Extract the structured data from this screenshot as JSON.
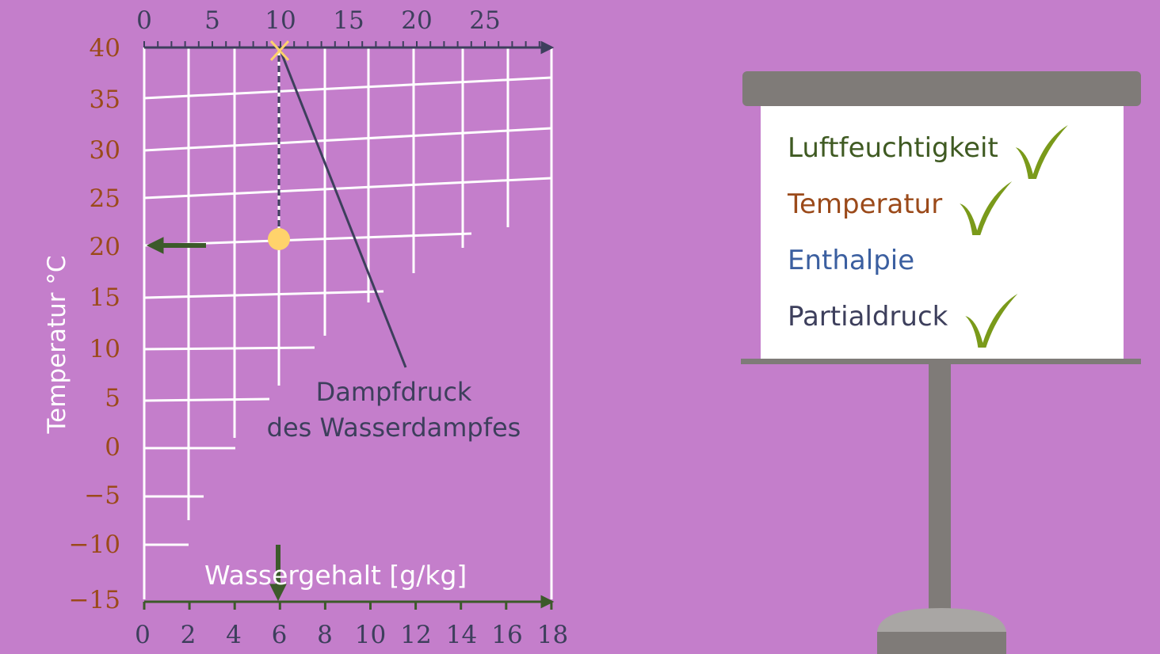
{
  "diagram": {
    "top_axis": {
      "tick_labels": [
        "0",
        "5",
        "10",
        "15",
        "20",
        "25"
      ]
    },
    "left_axis": {
      "title": "Temperatur °C",
      "tick_labels": [
        "40",
        "35",
        "30",
        "25",
        "20",
        "15",
        "10",
        "5",
        "0",
        "−5",
        "−10",
        "−15"
      ]
    },
    "bottom_axis": {
      "title": "Wassergehalt [g/kg]",
      "tick_labels": [
        "0",
        "2",
        "4",
        "6",
        "8",
        "10",
        "12",
        "14",
        "16",
        "18"
      ]
    },
    "annotation": {
      "lines": [
        "Dampfdruck",
        "des Wasserdampfes"
      ]
    }
  },
  "board": {
    "items": [
      {
        "label": "Luftfeuchtigkeit",
        "checked": true
      },
      {
        "label": "Temperatur",
        "checked": true
      },
      {
        "label": "Enthalpie",
        "checked": false
      },
      {
        "label": "Partialdruck",
        "checked": true
      }
    ]
  }
}
